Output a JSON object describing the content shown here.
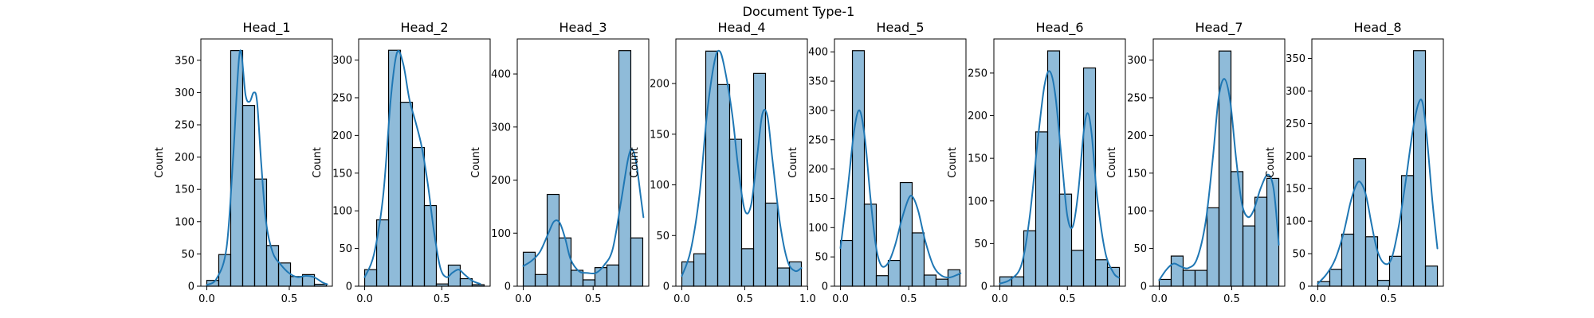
{
  "figure": {
    "title": "Document Type-1"
  },
  "chart_data": [
    {
      "type": "bar",
      "title": "Head_1",
      "ylabel": "Count",
      "xlabel": "",
      "bin_edges": [
        0.0,
        0.0725,
        0.145,
        0.2175,
        0.29,
        0.3625,
        0.435,
        0.5075,
        0.58,
        0.6525,
        0.725
      ],
      "values": [
        9,
        49,
        365,
        280,
        166,
        63,
        36,
        15,
        18,
        3
      ],
      "kde": [
        [
          0.0,
          2
        ],
        [
          0.06,
          12
        ],
        [
          0.12,
          60
        ],
        [
          0.16,
          200
        ],
        [
          0.2,
          363
        ],
        [
          0.235,
          296
        ],
        [
          0.26,
          286
        ],
        [
          0.285,
          300
        ],
        [
          0.305,
          285
        ],
        [
          0.33,
          190
        ],
        [
          0.36,
          98
        ],
        [
          0.4,
          52
        ],
        [
          0.45,
          33
        ],
        [
          0.5,
          20
        ],
        [
          0.55,
          14
        ],
        [
          0.6,
          16
        ],
        [
          0.65,
          14
        ],
        [
          0.7,
          6
        ],
        [
          0.73,
          3
        ]
      ],
      "xlim": [
        -0.036,
        0.761
      ],
      "ylim": [
        0,
        383
      ],
      "xticks": [
        {
          "v": 0.0,
          "label": "0.0"
        },
        {
          "v": 0.5,
          "label": "0.5"
        }
      ],
      "yticks": [
        {
          "v": 0,
          "label": "0"
        },
        {
          "v": 50,
          "label": "50"
        },
        {
          "v": 100,
          "label": "100"
        },
        {
          "v": 150,
          "label": "150"
        },
        {
          "v": 200,
          "label": "200"
        },
        {
          "v": 250,
          "label": "250"
        },
        {
          "v": 300,
          "label": "300"
        },
        {
          "v": 350,
          "label": "350"
        }
      ]
    },
    {
      "type": "bar",
      "title": "Head_2",
      "ylabel": "Count",
      "xlabel": "",
      "bin_edges": [
        0.0,
        0.0775,
        0.155,
        0.2325,
        0.31,
        0.3875,
        0.465,
        0.5425,
        0.62,
        0.6975,
        0.775
      ],
      "values": [
        22,
        88,
        313,
        244,
        184,
        107,
        3,
        28,
        10,
        2
      ],
      "kde": [
        [
          0.0,
          12
        ],
        [
          0.06,
          42
        ],
        [
          0.12,
          120
        ],
        [
          0.17,
          250
        ],
        [
          0.21,
          310
        ],
        [
          0.25,
          295
        ],
        [
          0.29,
          248
        ],
        [
          0.33,
          218
        ],
        [
          0.37,
          185
        ],
        [
          0.41,
          135
        ],
        [
          0.45,
          72
        ],
        [
          0.49,
          25
        ],
        [
          0.53,
          12
        ],
        [
          0.57,
          18
        ],
        [
          0.61,
          22
        ],
        [
          0.65,
          15
        ],
        [
          0.7,
          7
        ],
        [
          0.75,
          3
        ]
      ],
      "xlim": [
        -0.039,
        0.814
      ],
      "ylim": [
        0,
        328
      ],
      "xticks": [
        {
          "v": 0.0,
          "label": "0.0"
        },
        {
          "v": 0.5,
          "label": "0.5"
        }
      ],
      "yticks": [
        {
          "v": 0,
          "label": "0"
        },
        {
          "v": 50,
          "label": "50"
        },
        {
          "v": 100,
          "label": "100"
        },
        {
          "v": 150,
          "label": "150"
        },
        {
          "v": 200,
          "label": "200"
        },
        {
          "v": 250,
          "label": "250"
        },
        {
          "v": 300,
          "label": "300"
        }
      ]
    },
    {
      "type": "bar",
      "title": "Head_3",
      "ylabel": "Count",
      "xlabel": "",
      "bin_edges": [
        0.0,
        0.0855,
        0.171,
        0.2565,
        0.342,
        0.4275,
        0.513,
        0.5985,
        0.684,
        0.7695,
        0.855
      ],
      "values": [
        64,
        22,
        173,
        91,
        30,
        12,
        35,
        40,
        444,
        91
      ],
      "kde": [
        [
          0.0,
          38
        ],
        [
          0.06,
          48
        ],
        [
          0.12,
          65
        ],
        [
          0.18,
          100
        ],
        [
          0.22,
          122
        ],
        [
          0.26,
          120
        ],
        [
          0.3,
          90
        ],
        [
          0.34,
          50
        ],
        [
          0.4,
          28
        ],
        [
          0.46,
          25
        ],
        [
          0.52,
          25
        ],
        [
          0.58,
          40
        ],
        [
          0.64,
          70
        ],
        [
          0.7,
          160
        ],
        [
          0.75,
          240
        ],
        [
          0.78,
          258
        ],
        [
          0.81,
          230
        ],
        [
          0.84,
          170
        ],
        [
          0.86,
          130
        ]
      ],
      "xlim": [
        -0.043,
        0.898
      ],
      "ylim": [
        0,
        466
      ],
      "xticks": [
        {
          "v": 0.0,
          "label": "0.0"
        },
        {
          "v": 0.5,
          "label": "0.5"
        }
      ],
      "yticks": [
        {
          "v": 0,
          "label": "0"
        },
        {
          "v": 100,
          "label": "100"
        },
        {
          "v": 200,
          "label": "200"
        },
        {
          "v": 300,
          "label": "300"
        },
        {
          "v": 400,
          "label": "400"
        }
      ]
    },
    {
      "type": "bar",
      "title": "Head_4",
      "ylabel": "Count",
      "xlabel": "",
      "bin_edges": [
        0.0,
        0.095,
        0.19,
        0.285,
        0.38,
        0.475,
        0.57,
        0.665,
        0.76,
        0.855,
        0.95
      ],
      "values": [
        24,
        32,
        232,
        199,
        145,
        37,
        210,
        82,
        18,
        24
      ],
      "kde": [
        [
          0.0,
          10
        ],
        [
          0.07,
          35
        ],
        [
          0.14,
          90
        ],
        [
          0.2,
          170
        ],
        [
          0.26,
          222
        ],
        [
          0.3,
          232
        ],
        [
          0.34,
          215
        ],
        [
          0.4,
          170
        ],
        [
          0.45,
          115
        ],
        [
          0.5,
          75
        ],
        [
          0.55,
          80
        ],
        [
          0.6,
          130
        ],
        [
          0.64,
          170
        ],
        [
          0.68,
          168
        ],
        [
          0.72,
          125
        ],
        [
          0.78,
          62
        ],
        [
          0.84,
          25
        ],
        [
          0.9,
          15
        ],
        [
          0.95,
          18
        ]
      ],
      "xlim": [
        -0.0475,
        0.9975
      ],
      "ylim": [
        0,
        244
      ],
      "xticks": [
        {
          "v": 0.0,
          "label": "0.0"
        },
        {
          "v": 0.5,
          "label": "0.5"
        },
        {
          "v": 1.0,
          "label": "1.0"
        }
      ],
      "yticks": [
        {
          "v": 0,
          "label": "0"
        },
        {
          "v": 50,
          "label": "50"
        },
        {
          "v": 100,
          "label": "100"
        },
        {
          "v": 150,
          "label": "150"
        },
        {
          "v": 200,
          "label": "200"
        }
      ]
    },
    {
      "type": "bar",
      "title": "Head_5",
      "ylabel": "Count",
      "xlabel": "",
      "bin_edges": [
        0.0,
        0.0875,
        0.175,
        0.2625,
        0.35,
        0.4375,
        0.525,
        0.6125,
        0.7,
        0.7875,
        0.875
      ],
      "values": [
        78,
        402,
        140,
        18,
        44,
        177,
        91,
        19,
        12,
        28
      ],
      "kde": [
        [
          0.0,
          65
        ],
        [
          0.05,
          160
        ],
        [
          0.1,
          265
        ],
        [
          0.14,
          300
        ],
        [
          0.18,
          250
        ],
        [
          0.22,
          150
        ],
        [
          0.26,
          68
        ],
        [
          0.3,
          35
        ],
        [
          0.35,
          40
        ],
        [
          0.4,
          70
        ],
        [
          0.45,
          115
        ],
        [
          0.5,
          150
        ],
        [
          0.53,
          152
        ],
        [
          0.57,
          128
        ],
        [
          0.62,
          78
        ],
        [
          0.68,
          35
        ],
        [
          0.74,
          18
        ],
        [
          0.8,
          15
        ],
        [
          0.86,
          20
        ],
        [
          0.88,
          22
        ]
      ],
      "xlim": [
        -0.044,
        0.919
      ],
      "ylim": [
        0,
        422
      ],
      "xticks": [
        {
          "v": 0.0,
          "label": "0.0"
        },
        {
          "v": 0.5,
          "label": "0.5"
        }
      ],
      "yticks": [
        {
          "v": 0,
          "label": "0"
        },
        {
          "v": 50,
          "label": "50"
        },
        {
          "v": 100,
          "label": "100"
        },
        {
          "v": 150,
          "label": "150"
        },
        {
          "v": 200,
          "label": "200"
        },
        {
          "v": 250,
          "label": "250"
        },
        {
          "v": 300,
          "label": "300"
        },
        {
          "v": 350,
          "label": "350"
        },
        {
          "v": 400,
          "label": "400"
        }
      ]
    },
    {
      "type": "bar",
      "title": "Head_6",
      "ylabel": "Count",
      "xlabel": "",
      "bin_edges": [
        0.0,
        0.0885,
        0.177,
        0.2655,
        0.354,
        0.4425,
        0.531,
        0.6195,
        0.708,
        0.7965,
        0.885
      ],
      "values": [
        11,
        11,
        65,
        181,
        276,
        108,
        42,
        256,
        31,
        22
      ],
      "kde": [
        [
          0.0,
          3
        ],
        [
          0.08,
          8
        ],
        [
          0.16,
          25
        ],
        [
          0.22,
          80
        ],
        [
          0.28,
          170
        ],
        [
          0.33,
          235
        ],
        [
          0.37,
          252
        ],
        [
          0.41,
          225
        ],
        [
          0.46,
          145
        ],
        [
          0.5,
          82
        ],
        [
          0.54,
          70
        ],
        [
          0.58,
          110
        ],
        [
          0.62,
          180
        ],
        [
          0.65,
          203
        ],
        [
          0.68,
          178
        ],
        [
          0.72,
          105
        ],
        [
          0.78,
          40
        ],
        [
          0.84,
          16
        ],
        [
          0.88,
          10
        ]
      ],
      "xlim": [
        -0.044,
        0.929
      ],
      "ylim": [
        0,
        290
      ],
      "xticks": [
        {
          "v": 0.0,
          "label": "0.0"
        },
        {
          "v": 0.5,
          "label": "0.5"
        }
      ],
      "yticks": [
        {
          "v": 0,
          "label": "0"
        },
        {
          "v": 50,
          "label": "50"
        },
        {
          "v": 100,
          "label": "100"
        },
        {
          "v": 150,
          "label": "150"
        },
        {
          "v": 200,
          "label": "200"
        },
        {
          "v": 250,
          "label": "250"
        }
      ]
    },
    {
      "type": "bar",
      "title": "Head_7",
      "ylabel": "Count",
      "xlabel": "",
      "bin_edges": [
        0.0,
        0.0825,
        0.165,
        0.2475,
        0.33,
        0.4125,
        0.495,
        0.5775,
        0.66,
        0.7425,
        0.825
      ],
      "values": [
        9,
        40,
        21,
        21,
        104,
        312,
        152,
        80,
        118,
        143
      ],
      "kde": [
        [
          0.0,
          8
        ],
        [
          0.05,
          22
        ],
        [
          0.1,
          30
        ],
        [
          0.15,
          26
        ],
        [
          0.2,
          24
        ],
        [
          0.26,
          36
        ],
        [
          0.32,
          85
        ],
        [
          0.37,
          170
        ],
        [
          0.41,
          250
        ],
        [
          0.45,
          275
        ],
        [
          0.49,
          245
        ],
        [
          0.53,
          170
        ],
        [
          0.57,
          110
        ],
        [
          0.61,
          92
        ],
        [
          0.65,
          100
        ],
        [
          0.7,
          130
        ],
        [
          0.75,
          148
        ],
        [
          0.79,
          128
        ],
        [
          0.825,
          55
        ]
      ],
      "xlim": [
        -0.041,
        0.866
      ],
      "ylim": [
        0,
        328
      ],
      "xticks": [
        {
          "v": 0.0,
          "label": "0.0"
        },
        {
          "v": 0.5,
          "label": "0.5"
        }
      ],
      "yticks": [
        {
          "v": 0,
          "label": "0"
        },
        {
          "v": 50,
          "label": "50"
        },
        {
          "v": 100,
          "label": "100"
        },
        {
          "v": 150,
          "label": "150"
        },
        {
          "v": 200,
          "label": "200"
        },
        {
          "v": 250,
          "label": "250"
        },
        {
          "v": 300,
          "label": "300"
        }
      ]
    },
    {
      "type": "bar",
      "title": "Head_8",
      "ylabel": "Count",
      "xlabel": "",
      "bin_edges": [
        0.0,
        0.0845,
        0.169,
        0.2535,
        0.338,
        0.4225,
        0.507,
        0.5915,
        0.676,
        0.7605,
        0.845
      ],
      "values": [
        7,
        26,
        80,
        196,
        76,
        9,
        46,
        170,
        362,
        31
      ],
      "kde": [
        [
          0.0,
          4
        ],
        [
          0.06,
          18
        ],
        [
          0.12,
          40
        ],
        [
          0.18,
          80
        ],
        [
          0.23,
          128
        ],
        [
          0.27,
          155
        ],
        [
          0.3,
          160
        ],
        [
          0.34,
          140
        ],
        [
          0.38,
          95
        ],
        [
          0.42,
          55
        ],
        [
          0.47,
          35
        ],
        [
          0.52,
          42
        ],
        [
          0.57,
          90
        ],
        [
          0.62,
          160
        ],
        [
          0.67,
          238
        ],
        [
          0.71,
          280
        ],
        [
          0.74,
          282
        ],
        [
          0.77,
          230
        ],
        [
          0.81,
          130
        ],
        [
          0.845,
          58
        ]
      ],
      "xlim": [
        -0.042,
        0.887
      ],
      "ylim": [
        0,
        380
      ],
      "xticks": [
        {
          "v": 0.0,
          "label": "0.0"
        },
        {
          "v": 0.5,
          "label": "0.5"
        }
      ],
      "yticks": [
        {
          "v": 0,
          "label": "0"
        },
        {
          "v": 50,
          "label": "50"
        },
        {
          "v": 100,
          "label": "100"
        },
        {
          "v": 150,
          "label": "150"
        },
        {
          "v": 200,
          "label": "200"
        },
        {
          "v": 250,
          "label": "250"
        },
        {
          "v": 300,
          "label": "300"
        },
        {
          "v": 350,
          "label": "350"
        }
      ]
    }
  ],
  "colors": {
    "bar_fill": "#1f77b4",
    "bar_opacity": 0.5,
    "bar_edge": "#000000",
    "kde_line": "#1f77b4"
  }
}
